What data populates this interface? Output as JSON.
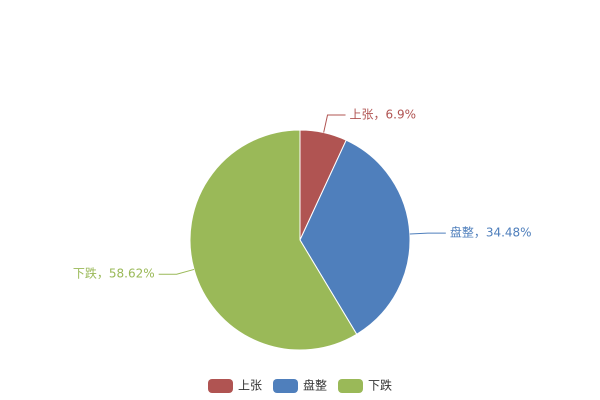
{
  "chart_data": {
    "type": "pie",
    "categories": [
      "上张",
      "盘整",
      "下跌"
    ],
    "values": [
      6.9,
      34.48,
      58.62
    ],
    "value_labels": [
      "上张，6.9%",
      "盘整，34.48%",
      "下跌，58.62%"
    ],
    "colors": [
      "#b05452",
      "#4f7fbc",
      "#9ab958"
    ],
    "legend": "bottom"
  }
}
